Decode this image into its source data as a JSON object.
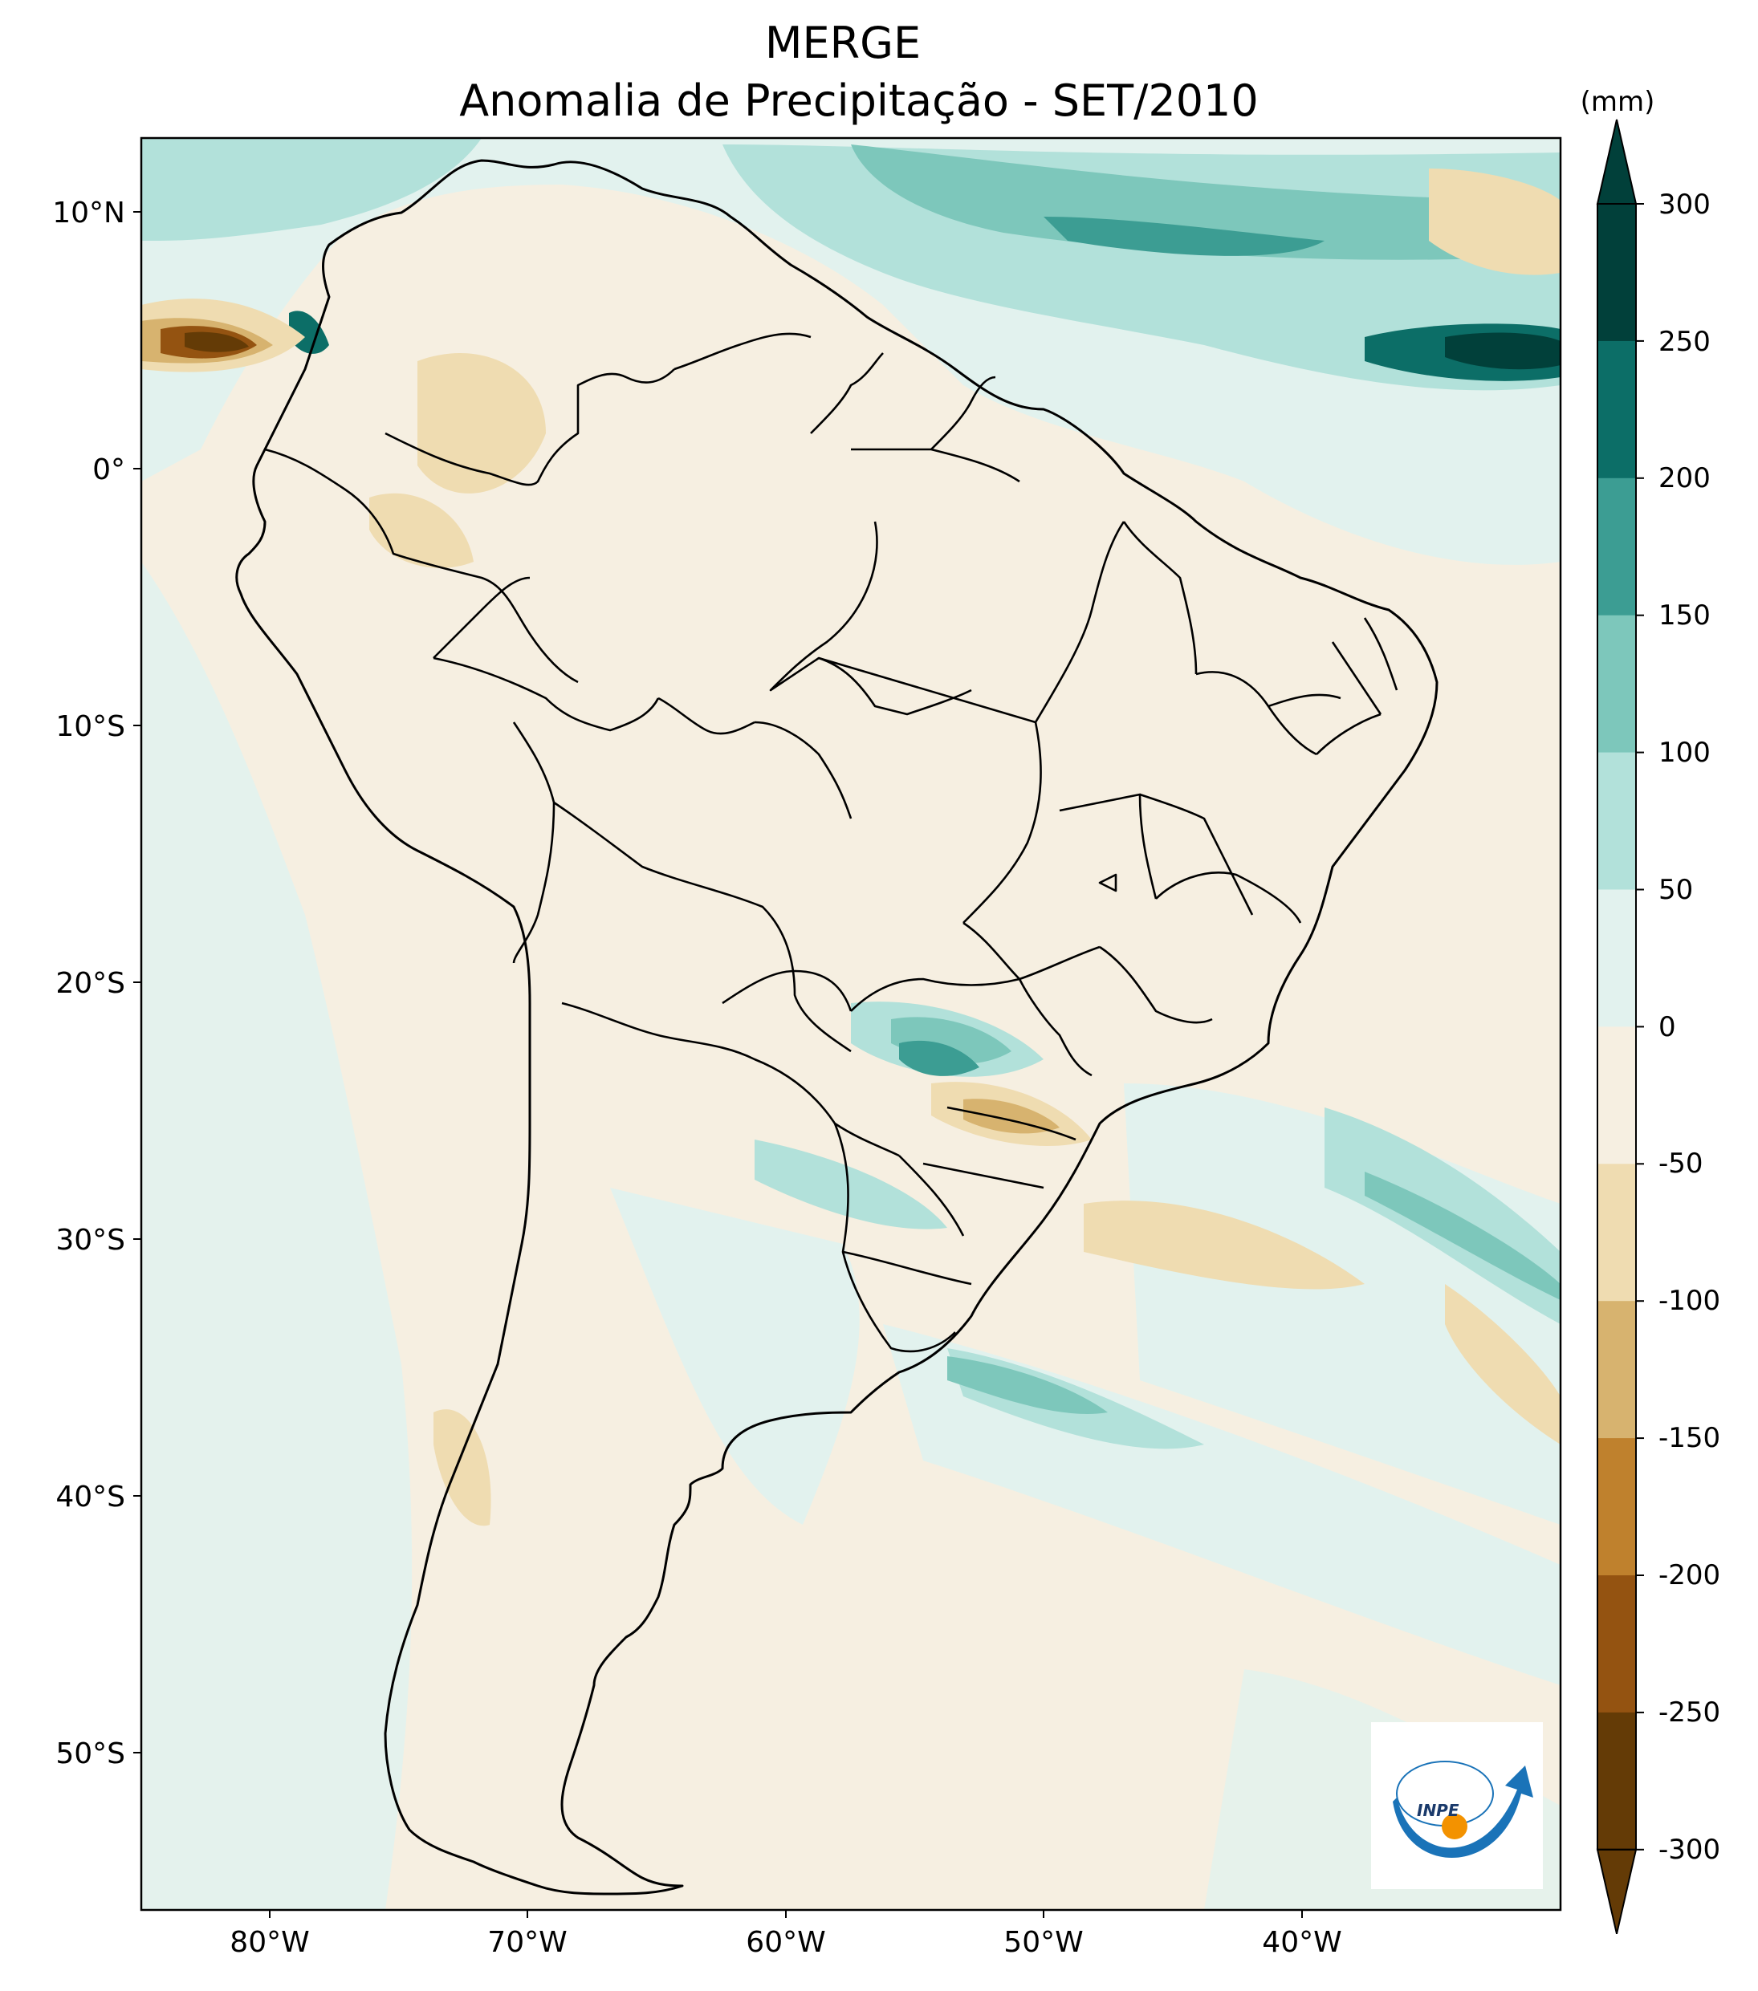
{
  "figure": {
    "title_line1": "MERGE",
    "title_line2": "Anomalia de Precipitação - SET/2010",
    "units_label": "(mm)"
  },
  "map": {
    "region": "South America",
    "lon_range": [
      -85,
      -30
    ],
    "lat_range": [
      -56,
      13
    ],
    "lon_ticks": [
      "80°W",
      "70°W",
      "60°W",
      "50°W",
      "40°W"
    ],
    "lat_ticks": [
      "10°N",
      "0°",
      "10°S",
      "20°S",
      "30°S",
      "40°S",
      "50°S"
    ]
  },
  "colorbar": {
    "levels": [
      "300",
      "250",
      "200",
      "150",
      "100",
      "50",
      "0",
      "-50",
      "-100",
      "-150",
      "-200",
      "-250",
      "-300"
    ],
    "colors": [
      "#01403a",
      "#0c6e67",
      "#3c9d93",
      "#7dc7bb",
      "#b2e1da",
      "#e2f2ee",
      "#f6efe1",
      "#efdcb1",
      "#d7b36f",
      "#bf812d",
      "#945311",
      "#643b06"
    ]
  },
  "logo": {
    "text": "INPE"
  }
}
